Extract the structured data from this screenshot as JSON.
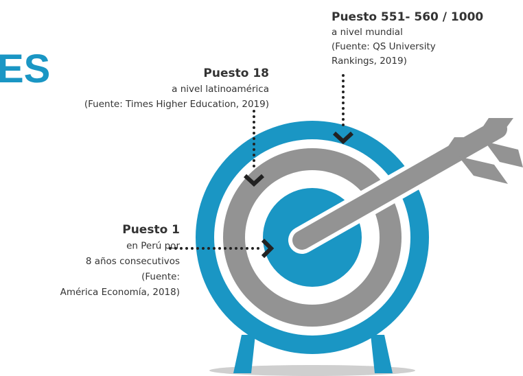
{
  "title_fragment": "ES",
  "callouts": [
    {
      "heading": "Puesto 551- 560 / 1000",
      "lines": [
        "a nivel mundial",
        "(Fuente: QS University",
        "Rankings, 2019)"
      ]
    },
    {
      "heading": "Puesto 18",
      "lines": [
        "a nivel latinoamérica",
        "(Fuente: Times Higher Education, 2019)"
      ]
    },
    {
      "heading": "Puesto 1",
      "lines": [
        "en Perú por",
        "8 años consecutivos",
        "(Fuente:",
        "América Economía, 2018)"
      ]
    }
  ]
}
